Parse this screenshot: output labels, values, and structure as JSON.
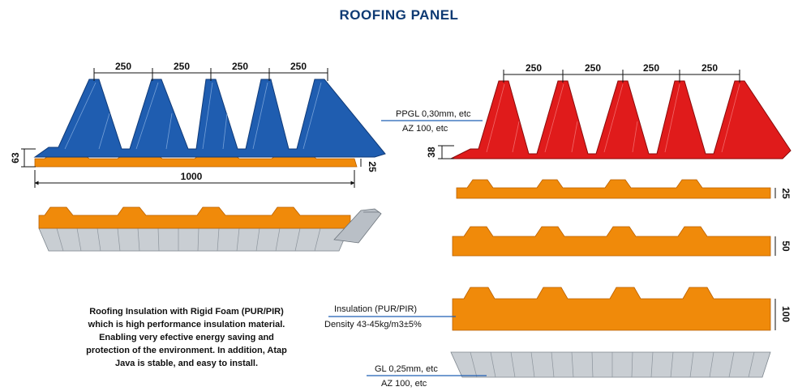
{
  "title": "ROOFING PANEL",
  "left_panel": {
    "rib_spacings": [
      "250",
      "250",
      "250",
      "250"
    ],
    "height_label": "63",
    "foam_thickness_label": "25",
    "width_label": "1000",
    "colors": {
      "sheet": "#1f5db0",
      "foam": "#f08a0a",
      "liner": "#c9ced3"
    }
  },
  "right_panel": {
    "rib_spacings": [
      "250",
      "250",
      "250",
      "250"
    ],
    "rib_height_label": "38",
    "top_sheet_label_1": "PPGL 0,30mm, etc",
    "top_sheet_label_2": "AZ 100, etc",
    "insulation_label_1": "Insulation (PUR/PIR)",
    "insulation_label_2": "Density 43-45kg/m3±5%",
    "foam_thicknesses": [
      "25",
      "50",
      "100"
    ],
    "bottom_sheet_label_1": "GL 0,25mm, etc",
    "bottom_sheet_label_2": "AZ 100, etc",
    "colors": {
      "sheet": "#e01b1b",
      "foam": "#f08a0a",
      "liner": "#c9ced3"
    }
  },
  "description": [
    "Roofing Insulation with Rigid Foam (PUR/PIR)",
    "which is high performance insulation material.",
    "Enabling very efective energy saving and",
    "protection of the environment. In addition, Atap",
    "Java is stable, and easy to install."
  ]
}
